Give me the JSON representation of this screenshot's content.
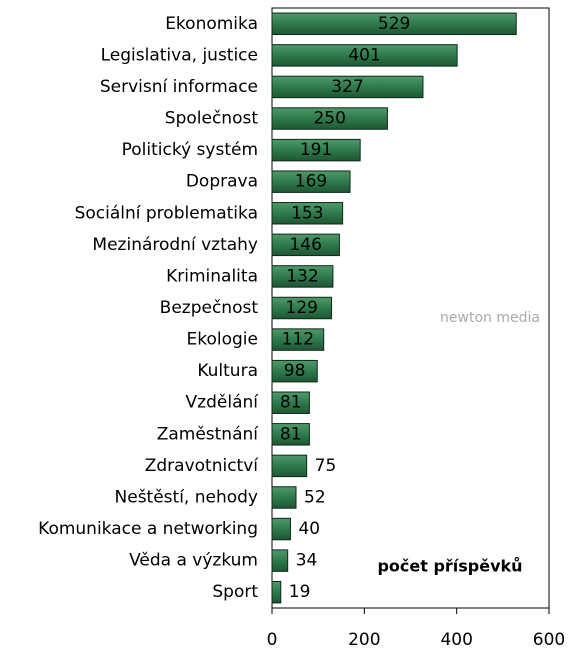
{
  "chart_data": {
    "type": "bar",
    "orientation": "horizontal",
    "categories": [
      "Ekonomika",
      "Legislativa, justice",
      "Servisní informace",
      "Společnost",
      "Politický systém",
      "Doprava",
      "Sociální problematika",
      "Mezinárodní vztahy",
      "Kriminalita",
      "Bezpečnost",
      "Ekologie",
      "Kultura",
      "Vzdělání",
      "Zaměstnání",
      "Zdravotnictví",
      "Neštěstí, nehody",
      "Komunikace a networking",
      "Věda a výzkum",
      "Sport"
    ],
    "values": [
      529,
      401,
      327,
      250,
      191,
      169,
      153,
      146,
      132,
      129,
      112,
      98,
      81,
      81,
      75,
      52,
      40,
      34,
      19
    ],
    "color": "#2f7a4c",
    "xlim": [
      0,
      600
    ],
    "xticks": [
      0,
      200,
      400,
      600
    ],
    "annotation": "počet příspěvků",
    "watermark": "newton media"
  }
}
